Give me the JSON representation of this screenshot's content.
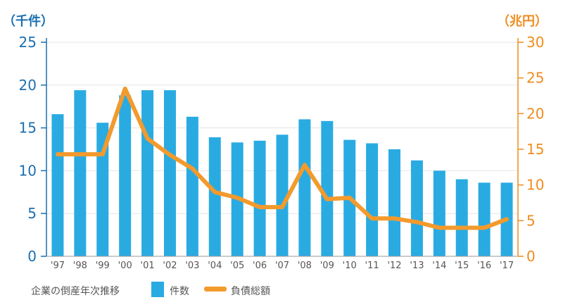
{
  "chart_data": {
    "type": "bar+line",
    "caption": "企業の倒産年次推移",
    "categories": [
      "'97",
      "'98",
      "'99",
      "'00",
      "'01",
      "'02",
      "'03",
      "'04",
      "'05",
      "'06",
      "'07",
      "'08",
      "'09",
      "'10",
      "'11",
      "'12",
      "'13",
      "'14",
      "'15",
      "'16",
      "'17"
    ],
    "y_left": {
      "unit": "（千件）",
      "range": [
        0,
        25
      ],
      "ticks": [
        0,
        5,
        10,
        15,
        20,
        25
      ]
    },
    "y_right": {
      "unit": "（兆円）",
      "range": [
        0,
        30
      ],
      "ticks": [
        0,
        5,
        10,
        15,
        20,
        25,
        30
      ]
    },
    "series": [
      {
        "name": "件数",
        "type": "bar",
        "axis": "left",
        "values": [
          16.6,
          19.4,
          15.6,
          18.8,
          19.4,
          19.4,
          16.3,
          13.9,
          13.3,
          13.5,
          14.2,
          16.0,
          15.8,
          13.6,
          13.2,
          12.5,
          11.2,
          10.0,
          9.0,
          8.6,
          8.6
        ],
        "color": "#29abe2"
      },
      {
        "name": "負債総額",
        "type": "line",
        "axis": "right",
        "values": [
          14.3,
          14.3,
          14.3,
          23.5,
          16.5,
          14.2,
          12.3,
          9.0,
          8.2,
          6.9,
          6.9,
          12.8,
          8.0,
          8.2,
          5.3,
          5.3,
          4.8,
          4.0,
          4.0,
          4.0,
          5.2
        ],
        "color": "#f39a2d"
      }
    ],
    "legend": [
      "件数",
      "負債総額"
    ],
    "axis_colors": {
      "left": "#1a6fb0",
      "right": "#f08c1e"
    }
  }
}
